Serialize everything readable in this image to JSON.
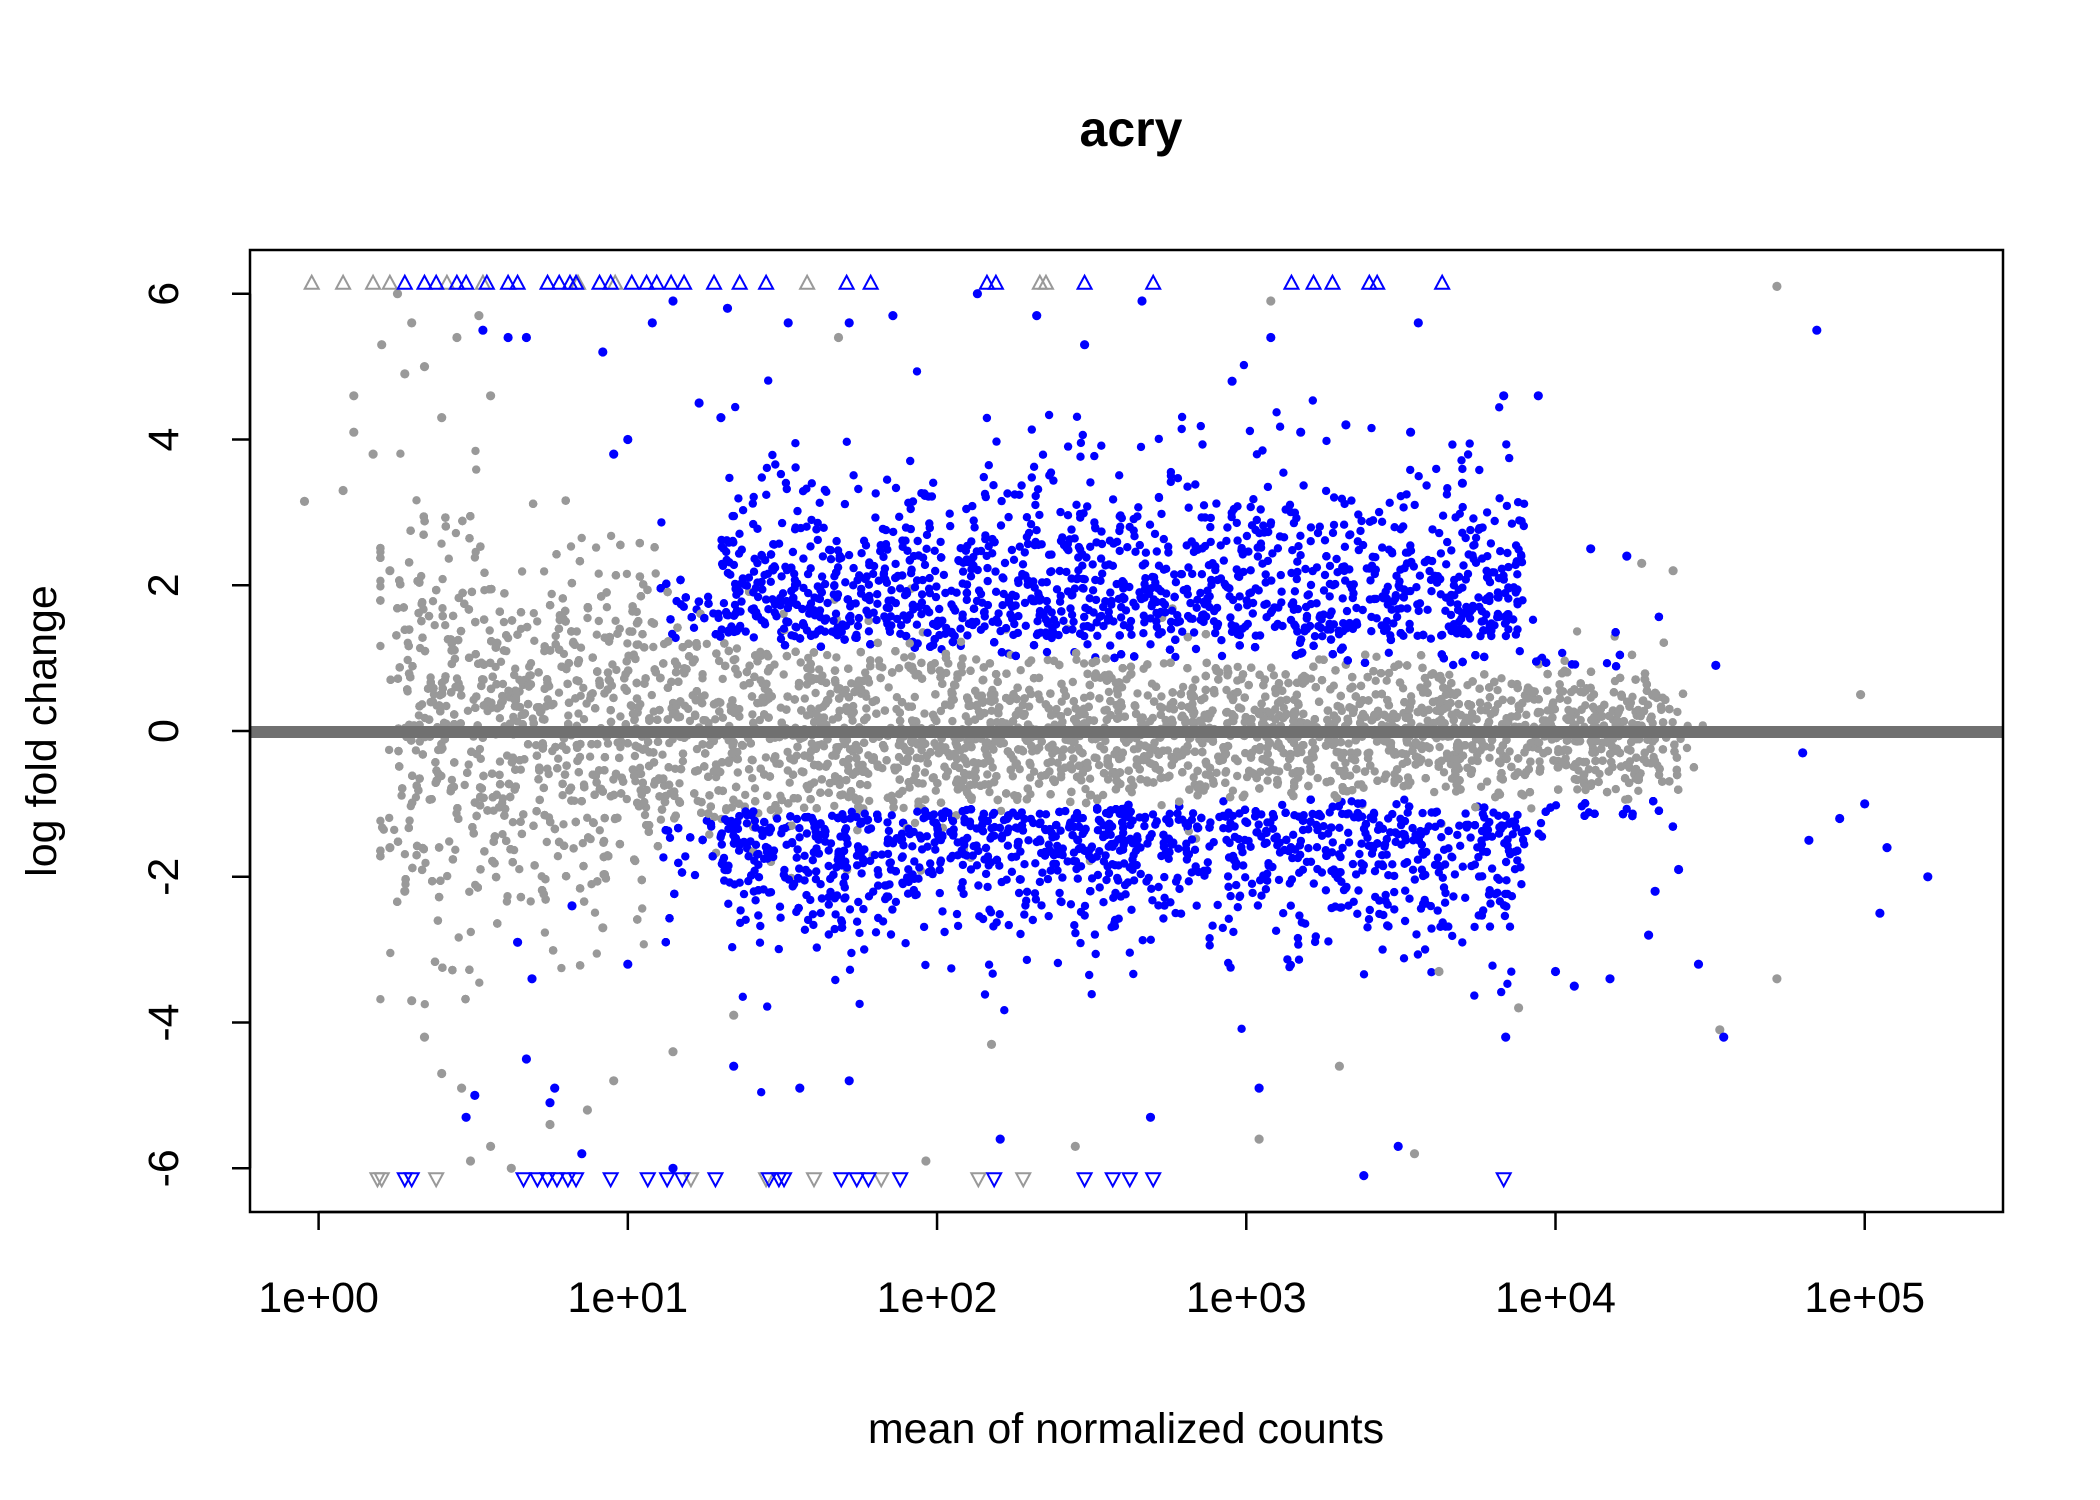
{
  "chart_data": {
    "type": "scatter",
    "title": "acry",
    "xlabel": "mean of normalized counts",
    "ylabel": "log fold change",
    "x_scale": "log10",
    "xlim": [
      0.6,
      280000
    ],
    "ylim": [
      -6.6,
      6.6
    ],
    "x_ticks": [
      "1e+00",
      "1e+01",
      "1e+02",
      "1e+03",
      "1e+04",
      "1e+05"
    ],
    "x_tick_values": [
      1,
      10,
      100,
      1000,
      10000,
      100000
    ],
    "y_ticks": [
      "-6",
      "-4",
      "-2",
      "0",
      "2",
      "4",
      "6"
    ],
    "y_tick_values": [
      -6,
      -4,
      -2,
      0,
      2,
      4,
      6
    ],
    "reference_line": {
      "y": 0,
      "color": "#707070"
    },
    "colors": {
      "significant": "#0000ff",
      "not_significant": "#999999"
    },
    "grid": false,
    "legend": "none",
    "series": [
      {
        "color": "#999999",
        "points": [
          [
            0.9,
            3.15
          ],
          [
            1.2,
            3.3
          ],
          [
            1.3,
            4.6
          ],
          [
            1.3,
            4.1
          ],
          [
            1.5,
            3.8
          ],
          [
            1.6,
            5.3
          ],
          [
            1.7,
            2.2
          ],
          [
            1.8,
            6.0
          ],
          [
            1.9,
            4.9
          ],
          [
            2.0,
            5.6
          ],
          [
            2.2,
            5.0
          ],
          [
            2.5,
            4.3
          ],
          [
            2.8,
            5.4
          ],
          [
            3.3,
            5.7
          ],
          [
            3.6,
            4.6
          ],
          [
            1.7,
            -1.6
          ],
          [
            1.9,
            -2.2
          ],
          [
            2.0,
            -3.7
          ],
          [
            2.2,
            -4.2
          ],
          [
            2.5,
            -4.7
          ],
          [
            2.9,
            -4.9
          ],
          [
            3.1,
            -5.9
          ],
          [
            3.6,
            -5.7
          ],
          [
            4.2,
            -6.0
          ],
          [
            5.6,
            -5.4
          ],
          [
            7.4,
            -5.2
          ],
          [
            9.0,
            -4.8
          ],
          [
            14,
            -4.4
          ],
          [
            22,
            -3.9
          ],
          [
            8.3,
            -2.7
          ],
          [
            150,
            -4.3
          ],
          [
            2000,
            -4.6
          ],
          [
            3500,
            -5.8
          ],
          [
            1100,
            -5.6
          ],
          [
            4200,
            -3.3
          ],
          [
            7600,
            -3.8
          ],
          [
            19000,
            2.3
          ],
          [
            24000,
            2.2
          ],
          [
            52000,
            6.1
          ],
          [
            97000,
            0.5
          ],
          [
            52000,
            -3.4
          ],
          [
            34000,
            -4.1
          ],
          [
            280,
            -5.7
          ],
          [
            92,
            -5.9
          ],
          [
            1200,
            5.9
          ],
          [
            48,
            5.4
          ]
        ],
        "markers_up": [
          0.95,
          1.2,
          1.5,
          1.7,
          2.6,
          3.4,
          6.9,
          9.1,
          38,
          215,
          225
        ],
        "markers_down": [
          1.55,
          1.6,
          2.4,
          16,
          28,
          40,
          66,
          136,
          190
        ]
      },
      {
        "color": "#0000ff",
        "points": [
          [
            3.4,
            5.5
          ],
          [
            4.1,
            5.4
          ],
          [
            4.7,
            5.4
          ],
          [
            8.3,
            5.2
          ],
          [
            12,
            5.6
          ],
          [
            14,
            5.9
          ],
          [
            21,
            5.8
          ],
          [
            33,
            5.6
          ],
          [
            52,
            5.6
          ],
          [
            72,
            5.7
          ],
          [
            135,
            6.0
          ],
          [
            210,
            5.7
          ],
          [
            300,
            5.3
          ],
          [
            460,
            5.9
          ],
          [
            1200,
            5.4
          ],
          [
            3600,
            5.6
          ],
          [
            70000,
            5.5
          ],
          [
            6800,
            4.6
          ],
          [
            8800,
            4.6
          ],
          [
            3400,
            4.1
          ],
          [
            2100,
            4.2
          ],
          [
            1500,
            4.1
          ],
          [
            900,
            4.8
          ],
          [
            10,
            4.0
          ],
          [
            9,
            3.8
          ],
          [
            17,
            4.5
          ],
          [
            20,
            4.3
          ],
          [
            5000,
            3.4
          ],
          [
            13000,
            2.5
          ],
          [
            17000,
            2.4
          ],
          [
            33000,
            0.9
          ],
          [
            63000,
            -0.3
          ],
          [
            10000,
            -3.3
          ],
          [
            11500,
            -3.5
          ],
          [
            15000,
            -3.4
          ],
          [
            29000,
            -3.2
          ],
          [
            35000,
            -4.2
          ],
          [
            112000,
            -2.5
          ],
          [
            160000,
            -2.0
          ],
          [
            118000,
            -1.6
          ],
          [
            100000,
            -1.0
          ],
          [
            83000,
            -1.2
          ],
          [
            66000,
            -1.5
          ],
          [
            25000,
            -1.9
          ],
          [
            21000,
            -2.2
          ],
          [
            20000,
            -2.8
          ],
          [
            6900,
            -4.2
          ],
          [
            2400,
            -6.1
          ],
          [
            3100,
            -5.7
          ],
          [
            1100,
            -4.9
          ],
          [
            490,
            -5.3
          ],
          [
            160,
            -5.6
          ],
          [
            14,
            -6.0
          ],
          [
            5.6,
            -5.1
          ],
          [
            3.0,
            -5.3
          ],
          [
            3.2,
            -5.0
          ],
          [
            7.1,
            -5.8
          ],
          [
            5.8,
            -4.9
          ],
          [
            4.7,
            -4.5
          ],
          [
            4.4,
            -2.9
          ],
          [
            4.9,
            -3.4
          ],
          [
            6.6,
            -2.4
          ],
          [
            10,
            -3.2
          ],
          [
            22,
            -4.6
          ],
          [
            36,
            -4.9
          ],
          [
            52,
            -4.8
          ]
        ],
        "markers_up": [
          1.9,
          2.2,
          2.4,
          2.8,
          3.0,
          3.5,
          4.1,
          4.4,
          5.5,
          6.0,
          6.5,
          6.8,
          8.1,
          8.8,
          10.3,
          11.5,
          12.4,
          13.8,
          15.2,
          19,
          23,
          28,
          51,
          61,
          145,
          155,
          300,
          500,
          1400,
          1650,
          1900,
          2500,
          2650,
          4300
        ],
        "markers_down": [
          1.9,
          2.0,
          4.6,
          5.1,
          5.5,
          5.9,
          6.4,
          6.8,
          8.8,
          11.6,
          13.4,
          15.0,
          19.2,
          28.6,
          30.8,
          32.0,
          49,
          55,
          60,
          76,
          153,
          300,
          370,
          420,
          500,
          6800
        ]
      }
    ]
  }
}
